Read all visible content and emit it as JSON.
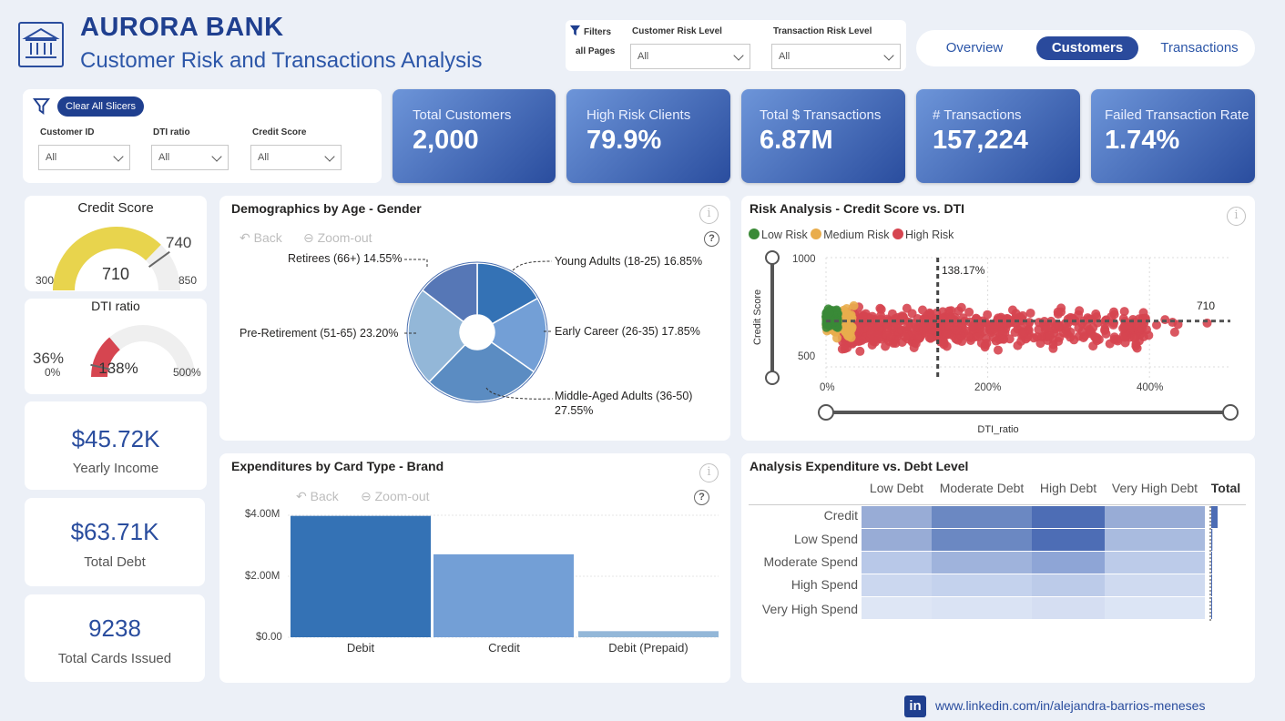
{
  "header": {
    "title": "AURORA BANK",
    "subtitle": "Customer Risk and Transactions Analysis"
  },
  "filters": {
    "label_line1": "Filters",
    "label_line2": "all Pages",
    "customer_risk_label": "Customer Risk Level",
    "customer_risk_value": "All",
    "transaction_risk_label": "Transaction Risk Level",
    "transaction_risk_value": "All"
  },
  "nav": {
    "tabs": [
      {
        "label": "Overview",
        "active": false
      },
      {
        "label": "Customers",
        "active": true
      },
      {
        "label": "Transactions",
        "active": false
      }
    ]
  },
  "slicers": {
    "clear_label": "Clear All Slicers",
    "customer_id_label": "Customer ID",
    "customer_id_value": "All",
    "dti_label": "DTI ratio",
    "dti_value": "All",
    "credit_label": "Credit Score",
    "credit_value": "All"
  },
  "kpis": [
    {
      "title": "Total Customers",
      "value": "2,000"
    },
    {
      "title": "High Risk Clients",
      "value": "79.9%"
    },
    {
      "title": "Total $ Transactions",
      "value": "6.87M"
    },
    {
      "title": "# Transactions",
      "value": "157,224"
    },
    {
      "title": "Failed Transaction Rate",
      "value": "1.74%"
    }
  ],
  "gauges": {
    "credit": {
      "title": "Credit Score",
      "value": "710",
      "min": "300",
      "max": "850",
      "target": "740",
      "fraction": 0.7455,
      "color": "#e8d44d"
    },
    "dti": {
      "title": "DTI ratio",
      "value": "138%",
      "min": "0%",
      "max": "500%",
      "target": "36%",
      "fraction": 0.276,
      "color": "#d64550"
    }
  },
  "metrics": [
    {
      "value": "$45.72K",
      "label": "Yearly Income"
    },
    {
      "value": "$63.71K",
      "label": "Total Debt"
    },
    {
      "value": "9238",
      "label": "Total Cards Issued"
    }
  ],
  "demographics": {
    "title": "Demographics by Age - Gender",
    "back": "Back",
    "zoom": "Zoom-out",
    "info": "i",
    "help": "?"
  },
  "risk": {
    "title": "Risk Analysis - Credit Score vs. DTI",
    "legend": [
      {
        "label": "Low Risk",
        "color": "#3a8a37"
      },
      {
        "label": "Medium Risk",
        "color": "#e9ad4c"
      },
      {
        "label": "High Risk",
        "color": "#d64550"
      }
    ],
    "y_axis": "Credit Score",
    "x_axis": "DTI_ratio",
    "y_ticks": [
      "1000",
      "500"
    ],
    "x_ticks": [
      "0%",
      "200%",
      "400%"
    ],
    "ref_x_label": "138.17%",
    "ref_y_label": "710",
    "info": "i"
  },
  "expenditures": {
    "title": "Expenditures by Card Type - Brand",
    "back": "Back",
    "zoom": "Zoom-out",
    "info": "i",
    "help": "?",
    "y_ticks": [
      "$4.00M",
      "$2.00M",
      "$0.00"
    ]
  },
  "heatmap": {
    "title": "Analysis Expenditure vs. Debt Level",
    "columns": [
      "Low Debt",
      "Moderate Debt",
      "High Debt",
      "Very High Debt"
    ],
    "total_label": "Total",
    "rows": [
      "Credit",
      "Low Spend",
      "Moderate Spend",
      "High Spend",
      "Very High Spend"
    ],
    "info": "i",
    "cells": [
      [
        "#98acd6",
        "#6b88c2",
        "#4d6db5",
        "#98acd6"
      ],
      [
        "#98acd6",
        "#6b88c2",
        "#4d6db5",
        "#a9bbdf"
      ],
      [
        "#b8c8e8",
        "#9fb3dc",
        "#8ea5d6",
        "#bccbe9"
      ],
      [
        "#cbd7ef",
        "#c4d2ed",
        "#bccbe9",
        "#cfdaf0"
      ],
      [
        "#dee6f5",
        "#dae3f4",
        "#d5def2",
        "#dce5f5"
      ]
    ],
    "totals": [
      1.0,
      0.18,
      0.04,
      0.02,
      0.01
    ]
  },
  "footer": {
    "link": "www.linkedin.com/in/alejandra-barrios-meneses"
  },
  "chart_data": [
    {
      "type": "pie",
      "title": "Demographics by Age - Gender",
      "categories": [
        "Young Adults (18-25)",
        "Early Career (26-35)",
        "Middle-Aged Adults (36-50)",
        "Pre-Retirement (51-65)",
        "Retirees (66+)"
      ],
      "values": [
        16.85,
        17.85,
        27.55,
        23.2,
        14.55
      ],
      "value_labels": [
        "16.85%",
        "17.85%",
        "27.55%",
        "23.20%",
        "14.55%"
      ],
      "colors": [
        "#3472b5",
        "#739fd6",
        "#5b8cc2",
        "#93b7d8",
        "#5677b6"
      ]
    },
    {
      "type": "bar",
      "title": "Expenditures by Card Type - Brand",
      "categories": [
        "Debit",
        "Credit",
        "Debit (Prepaid)"
      ],
      "values": [
        3.98,
        2.72,
        0.2
      ],
      "unit": "$M",
      "ylim": [
        0,
        4.6
      ],
      "colors": [
        "#3472b5",
        "#739fd6",
        "#93b7d8"
      ]
    },
    {
      "type": "scatter",
      "title": "Risk Analysis - Credit Score vs. DTI",
      "xlabel": "DTI_ratio",
      "ylabel": "Credit Score",
      "xlim": [
        0,
        500
      ],
      "ylim": [
        450,
        1000
      ],
      "ref_x": 138.17,
      "ref_y": 710,
      "groups": [
        {
          "name": "Low Risk",
          "x_range": [
            0,
            15
          ],
          "y_range": [
            660,
            780
          ],
          "count": 90
        },
        {
          "name": "Medium Risk",
          "x_range": [
            0,
            35
          ],
          "y_range": [
            610,
            790
          ],
          "count": 80
        },
        {
          "name": "High Risk",
          "x_range": [
            20,
            400
          ],
          "y_range": [
            560,
            800
          ],
          "count": 600
        },
        {
          "name": "High Risk",
          "x_range": [
            400,
            500
          ],
          "y_range": [
            650,
            760
          ],
          "count": 6
        }
      ]
    }
  ]
}
